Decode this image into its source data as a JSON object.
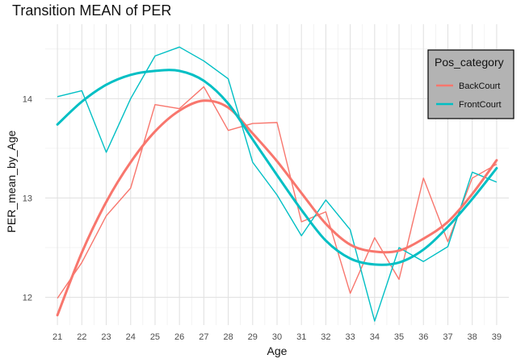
{
  "chart_data": {
    "type": "line",
    "title": "Transition MEAN of PER",
    "xlabel": "Age",
    "ylabel": "PER_mean_by_Age",
    "x": [
      21,
      22,
      23,
      24,
      25,
      26,
      27,
      28,
      29,
      30,
      31,
      32,
      33,
      34,
      35,
      36,
      37,
      38,
      39
    ],
    "xlim": [
      20.5,
      39.5
    ],
    "ylim": [
      11.72,
      14.75
    ],
    "yticks": [
      12,
      13,
      14
    ],
    "grid": true,
    "legend": {
      "title": "Pos_category",
      "placement": "top-right"
    },
    "series": [
      {
        "name": "BackCourt",
        "color": "#F8766D",
        "values": [
          11.99,
          12.35,
          12.82,
          13.1,
          13.94,
          13.9,
          14.12,
          13.68,
          13.75,
          13.76,
          12.76,
          12.86,
          12.04,
          12.6,
          12.18,
          13.2,
          12.56,
          13.2,
          13.34
        ],
        "smooth": [
          11.82,
          12.45,
          12.96,
          13.36,
          13.67,
          13.88,
          13.98,
          13.91,
          13.65,
          13.37,
          13.05,
          12.74,
          12.53,
          12.46,
          12.47,
          12.59,
          12.76,
          13.04,
          13.38
        ]
      },
      {
        "name": "FrontCourt",
        "color": "#00BFC4",
        "values": [
          14.02,
          14.08,
          13.46,
          14.0,
          14.43,
          14.52,
          14.38,
          14.2,
          13.36,
          13.03,
          12.62,
          12.98,
          12.68,
          11.76,
          12.5,
          12.36,
          12.51,
          13.26,
          13.16
        ],
        "smooth": [
          13.74,
          13.97,
          14.14,
          14.24,
          14.28,
          14.28,
          14.18,
          13.95,
          13.59,
          13.23,
          12.88,
          12.57,
          12.39,
          12.33,
          12.35,
          12.48,
          12.71,
          12.99,
          13.3
        ]
      }
    ]
  }
}
